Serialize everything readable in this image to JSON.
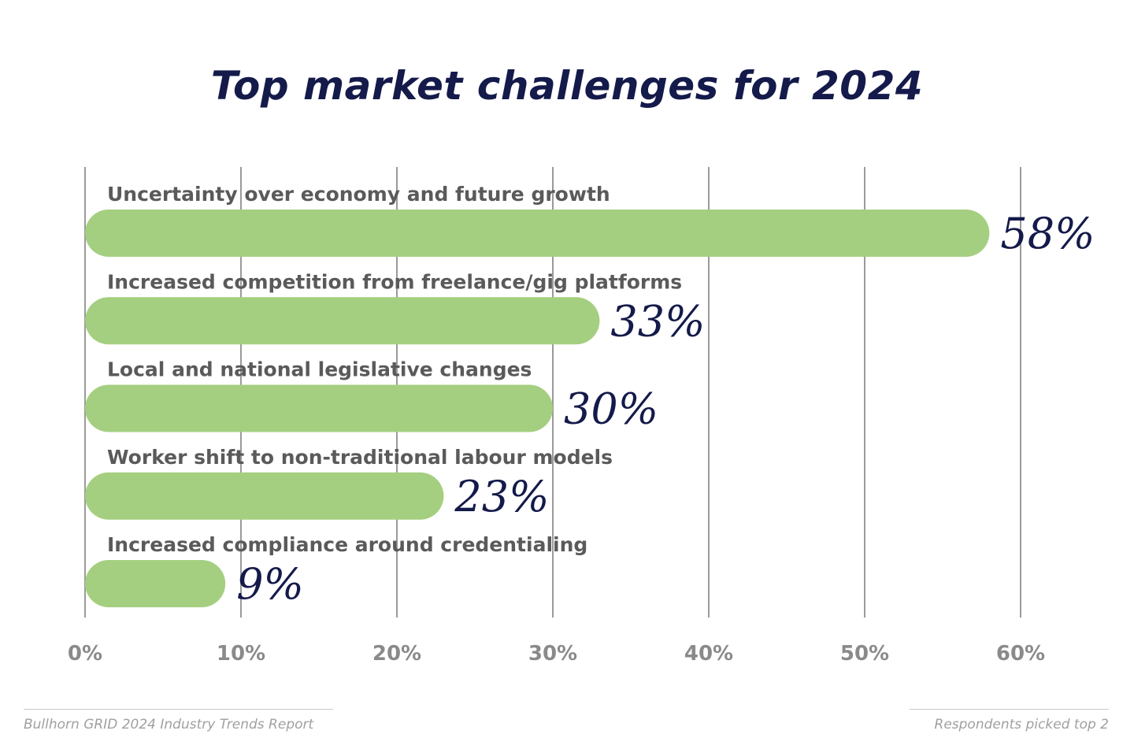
{
  "chart_data": {
    "type": "bar",
    "orientation": "horizontal",
    "title": "Top market challenges for 2024",
    "categories": [
      "Uncertainty over economy and future growth",
      "Increased competition from freelance/gig platforms",
      "Local and national legislative changes",
      "Worker shift to non-traditional labour models",
      "Increased compliance around credentialing"
    ],
    "values": [
      58,
      33,
      30,
      23,
      9
    ],
    "value_labels": [
      "58%",
      "33%",
      "30%",
      "23%",
      "9%"
    ],
    "xlim": [
      0,
      60
    ],
    "xticks": [
      0,
      10,
      20,
      30,
      40,
      50,
      60
    ],
    "xtick_labels": [
      "0%",
      "10%",
      "20%",
      "30%",
      "40%",
      "50%",
      "60%"
    ],
    "grid": "vertical",
    "bar_color": "#a5cf80",
    "label_color": "#5a5a5a",
    "value_color": "#141a4a",
    "grid_color": "#9a9a9a"
  },
  "footer": {
    "source": "Bullhorn GRID 2024 Industry Trends Report",
    "note": "Respondents picked top 2"
  }
}
